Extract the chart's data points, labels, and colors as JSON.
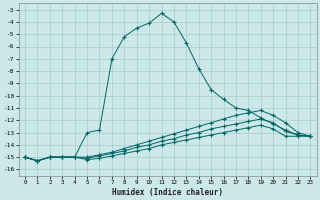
{
  "xlabel": "Humidex (Indice chaleur)",
  "background_color": "#cce8e8",
  "grid_color": "#aacccc",
  "line_color": "#006666",
  "xlim": [
    -0.5,
    23.5
  ],
  "ylim": [
    -16.5,
    -2.5
  ],
  "xticks": [
    0,
    1,
    2,
    3,
    4,
    5,
    6,
    7,
    8,
    9,
    10,
    11,
    12,
    13,
    14,
    15,
    16,
    17,
    18,
    19,
    20,
    21,
    22,
    23
  ],
  "yticks": [
    -3,
    -4,
    -5,
    -6,
    -7,
    -8,
    -9,
    -10,
    -11,
    -12,
    -13,
    -14,
    -15,
    -16
  ],
  "series": [
    {
      "x": [
        0,
        1,
        2,
        3,
        4,
        5,
        6,
        7,
        8,
        9,
        10,
        11,
        12,
        13,
        14,
        15,
        16,
        17,
        18,
        19,
        20,
        21,
        22,
        23
      ],
      "y": [
        -15,
        -15.3,
        -15,
        -15,
        -15,
        -13,
        -12.8,
        -7.0,
        -5.2,
        -4.5,
        -4.1,
        -3.3,
        -4.0,
        -5.7,
        -7.8,
        -9.5,
        -10.3,
        -11.0,
        -11.2,
        -11.8,
        -12.3,
        -12.8,
        -13.2,
        -13.3
      ]
    },
    {
      "x": [
        0,
        1,
        2,
        3,
        4,
        5,
        6,
        7,
        8,
        9,
        10,
        11,
        12,
        13,
        14,
        15,
        16,
        17,
        18,
        19,
        20,
        21,
        22,
        23
      ],
      "y": [
        -15,
        -15.3,
        -15,
        -15,
        -15,
        -15,
        -14.8,
        -14.6,
        -14.3,
        -14.0,
        -13.7,
        -13.4,
        -13.1,
        -12.8,
        -12.5,
        -12.2,
        -11.9,
        -11.6,
        -11.4,
        -11.2,
        -11.6,
        -12.2,
        -13.0,
        -13.3
      ]
    },
    {
      "x": [
        0,
        1,
        2,
        3,
        4,
        5,
        6,
        7,
        8,
        9,
        10,
        11,
        12,
        13,
        14,
        15,
        16,
        17,
        18,
        19,
        20,
        21,
        22,
        23
      ],
      "y": [
        -15,
        -15.3,
        -15,
        -15,
        -15,
        -15.1,
        -14.9,
        -14.7,
        -14.5,
        -14.2,
        -14.0,
        -13.7,
        -13.5,
        -13.2,
        -13.0,
        -12.7,
        -12.5,
        -12.3,
        -12.1,
        -11.9,
        -12.2,
        -12.9,
        -13.2,
        -13.3
      ]
    },
    {
      "x": [
        0,
        1,
        2,
        3,
        4,
        5,
        6,
        7,
        8,
        9,
        10,
        11,
        12,
        13,
        14,
        15,
        16,
        17,
        18,
        19,
        20,
        21,
        22,
        23
      ],
      "y": [
        -15,
        -15.3,
        -15,
        -15,
        -15,
        -15.2,
        -15.1,
        -14.9,
        -14.7,
        -14.5,
        -14.3,
        -14.0,
        -13.8,
        -13.6,
        -13.4,
        -13.2,
        -13.0,
        -12.8,
        -12.6,
        -12.4,
        -12.7,
        -13.3,
        -13.3,
        -13.3
      ]
    }
  ]
}
